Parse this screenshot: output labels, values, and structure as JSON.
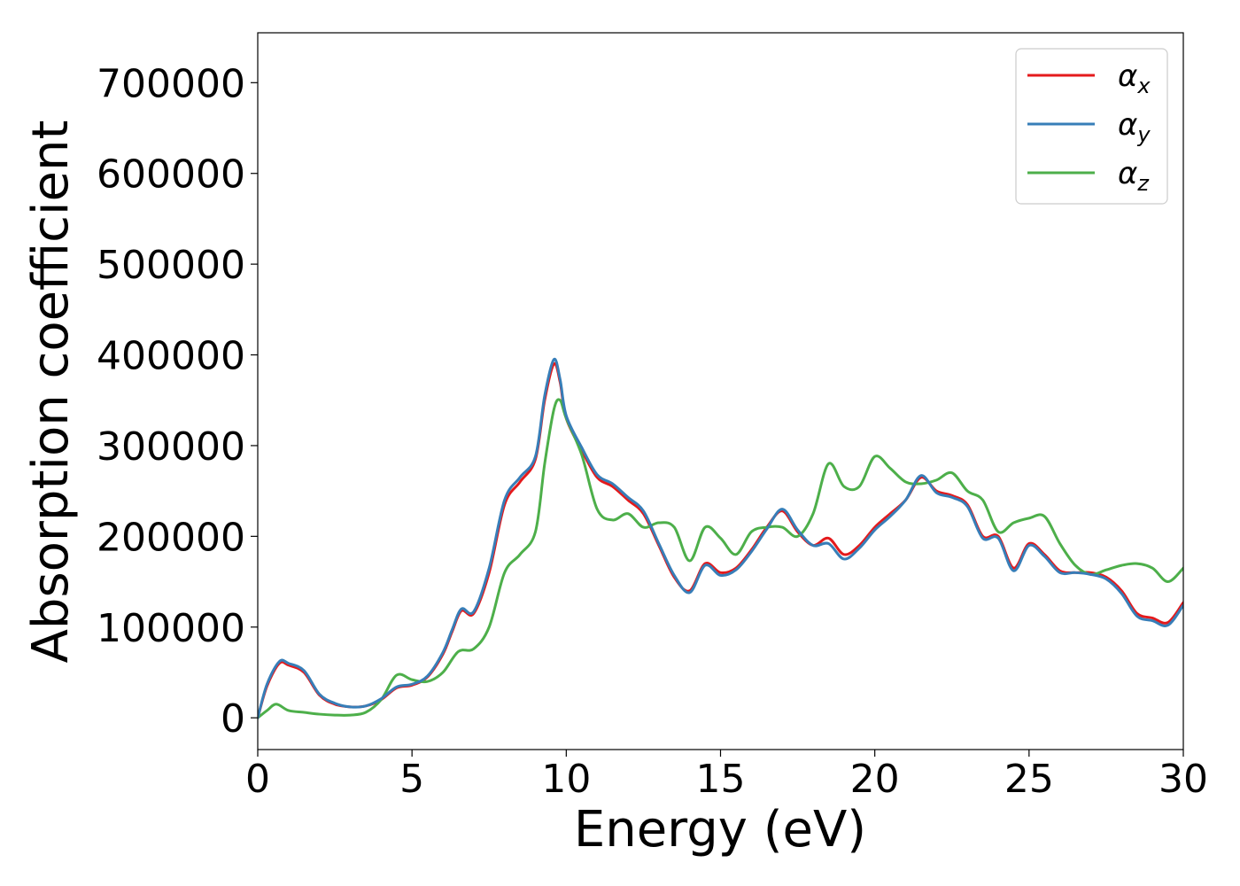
{
  "chart_data": {
    "type": "line",
    "xlabel": "Energy (eV)",
    "ylabel": "Absorption coefficient",
    "xlim": [
      0,
      30
    ],
    "ylim": [
      -35000,
      755000
    ],
    "xticks": [
      0,
      5,
      10,
      15,
      20,
      25,
      30
    ],
    "yticks": [
      0,
      100000,
      200000,
      300000,
      400000,
      500000,
      600000,
      700000
    ],
    "grid": false,
    "legend_position": "top-right",
    "series": [
      {
        "name": "α_x",
        "label_main": "α",
        "label_sub": "x",
        "color": "#e41a1c",
        "x": [
          0,
          0.3,
          0.7,
          1.0,
          1.5,
          2.0,
          2.5,
          3.0,
          3.5,
          4.0,
          4.5,
          5.0,
          5.5,
          6.0,
          6.3,
          6.6,
          7.0,
          7.5,
          8.0,
          8.5,
          9.0,
          9.3,
          9.6,
          9.8,
          10.0,
          10.5,
          11.0,
          11.5,
          12.0,
          12.5,
          13.0,
          13.5,
          14.0,
          14.5,
          15.0,
          15.5,
          16.0,
          16.5,
          17.0,
          17.5,
          18.0,
          18.5,
          19.0,
          19.5,
          20.0,
          20.5,
          21.0,
          21.5,
          22.0,
          22.5,
          23.0,
          23.5,
          24.0,
          24.5,
          25.0,
          25.5,
          26.0,
          26.5,
          27.0,
          27.5,
          28.0,
          28.5,
          29.0,
          29.5,
          30.0
        ],
        "y": [
          0,
          35000,
          60000,
          58000,
          50000,
          25000,
          15000,
          12000,
          13000,
          20000,
          33000,
          36000,
          45000,
          70000,
          95000,
          118000,
          115000,
          160000,
          235000,
          260000,
          285000,
          350000,
          390000,
          370000,
          330000,
          295000,
          265000,
          255000,
          240000,
          225000,
          190000,
          155000,
          140000,
          170000,
          160000,
          165000,
          185000,
          210000,
          228000,
          205000,
          190000,
          198000,
          180000,
          190000,
          210000,
          225000,
          240000,
          265000,
          250000,
          245000,
          235000,
          200000,
          200000,
          165000,
          192000,
          180000,
          162000,
          160000,
          160000,
          155000,
          140000,
          115000,
          110000,
          105000,
          127000
        ]
      },
      {
        "name": "α_y",
        "label_main": "α",
        "label_sub": "y",
        "color": "#377eb8",
        "x": [
          0,
          0.3,
          0.7,
          1.0,
          1.5,
          2.0,
          2.5,
          3.0,
          3.5,
          4.0,
          4.5,
          5.0,
          5.5,
          6.0,
          6.3,
          6.6,
          7.0,
          7.5,
          8.0,
          8.5,
          9.0,
          9.3,
          9.6,
          9.8,
          10.0,
          10.5,
          11.0,
          11.5,
          12.0,
          12.5,
          13.0,
          13.5,
          14.0,
          14.5,
          15.0,
          15.5,
          16.0,
          16.5,
          17.0,
          17.5,
          18.0,
          18.5,
          19.0,
          19.5,
          20.0,
          20.5,
          21.0,
          21.5,
          22.0,
          22.5,
          23.0,
          23.5,
          24.0,
          24.5,
          25.0,
          25.5,
          26.0,
          26.5,
          27.0,
          27.5,
          28.0,
          28.5,
          29.0,
          29.5,
          30.0
        ],
        "y": [
          0,
          37000,
          62000,
          60000,
          52000,
          26000,
          16000,
          12000,
          13000,
          21000,
          34000,
          37000,
          46000,
          72000,
          97000,
          120000,
          117000,
          165000,
          240000,
          265000,
          288000,
          355000,
          395000,
          373000,
          333000,
          298000,
          268000,
          258000,
          243000,
          228000,
          192000,
          157000,
          138000,
          168000,
          157000,
          163000,
          183000,
          208000,
          230000,
          207000,
          190000,
          192000,
          175000,
          187000,
          207000,
          222000,
          240000,
          267000,
          248000,
          243000,
          233000,
          198000,
          198000,
          162000,
          190000,
          178000,
          160000,
          160000,
          158000,
          153000,
          137000,
          112000,
          107000,
          102000,
          124000
        ]
      },
      {
        "name": "α_z",
        "label_main": "α",
        "label_sub": "z",
        "color": "#4daf4a",
        "x": [
          0,
          0.3,
          0.6,
          1.0,
          1.5,
          2.0,
          2.5,
          3.0,
          3.5,
          4.0,
          4.5,
          5.0,
          5.5,
          6.0,
          6.5,
          7.0,
          7.5,
          8.0,
          8.5,
          9.0,
          9.3,
          9.6,
          9.8,
          10.0,
          10.5,
          11.0,
          11.5,
          12.0,
          12.5,
          13.0,
          13.5,
          14.0,
          14.5,
          15.0,
          15.5,
          16.0,
          16.5,
          17.0,
          17.5,
          18.0,
          18.5,
          19.0,
          19.5,
          20.0,
          20.5,
          21.0,
          21.5,
          22.0,
          22.5,
          23.0,
          23.5,
          24.0,
          24.5,
          25.0,
          25.5,
          26.0,
          26.5,
          27.0,
          27.5,
          28.0,
          28.5,
          29.0,
          29.5,
          30.0
        ],
        "y": [
          0,
          8000,
          15000,
          8000,
          6000,
          4000,
          3000,
          3000,
          6000,
          20000,
          47000,
          42000,
          40000,
          50000,
          73000,
          76000,
          100000,
          160000,
          180000,
          205000,
          280000,
          340000,
          350000,
          330000,
          290000,
          230000,
          218000,
          225000,
          210000,
          215000,
          210000,
          173000,
          210000,
          198000,
          180000,
          205000,
          210000,
          210000,
          200000,
          225000,
          280000,
          255000,
          255000,
          288000,
          275000,
          260000,
          258000,
          262000,
          270000,
          250000,
          240000,
          205000,
          215000,
          220000,
          222000,
          192000,
          168000,
          158000,
          163000,
          168000,
          170000,
          165000,
          150000,
          165000
        ]
      }
    ]
  }
}
